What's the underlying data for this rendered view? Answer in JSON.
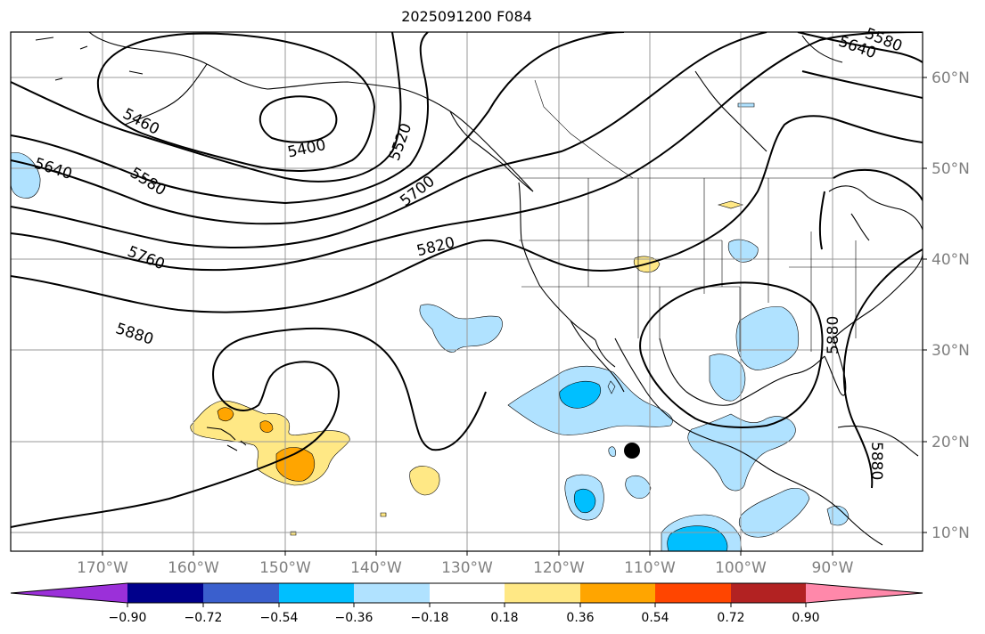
{
  "title": "2025091200 F084",
  "latitude_labels": [
    "60°N",
    "50°N",
    "40°N",
    "30°N",
    "20°N",
    "10°N"
  ],
  "longitude_labels": [
    "170°W",
    "160°W",
    "150°W",
    "140°W",
    "130°W",
    "120°W",
    "110°W",
    "100°W",
    "90°W"
  ],
  "contour_labels": [
    "5460",
    "5400",
    "5520",
    "5640",
    "5580",
    "5700",
    "5760",
    "5820",
    "5880",
    "5640",
    "5580",
    "5880",
    "5880"
  ],
  "colorbar": {
    "labels": [
      "−0.90",
      "−0.72",
      "−0.54",
      "−0.36",
      "−0.18",
      "0.18",
      "0.36",
      "0.54",
      "0.72",
      "0.90"
    ],
    "colors": [
      "#9b30d9",
      "#00008b",
      "#3a5fcd",
      "#00bfff",
      "#b0e2ff",
      "#ffffff",
      "#ffe885",
      "#ffa500",
      "#ff4500",
      "#b22222",
      "#ff88aa"
    ]
  },
  "colors": {
    "light_blue": "#b0e2ff",
    "deep_sky_blue": "#00bfff",
    "yellow": "#ffe885",
    "orange": "#ffa500",
    "grid": "#9a9a9a",
    "marker": "#000000"
  }
}
